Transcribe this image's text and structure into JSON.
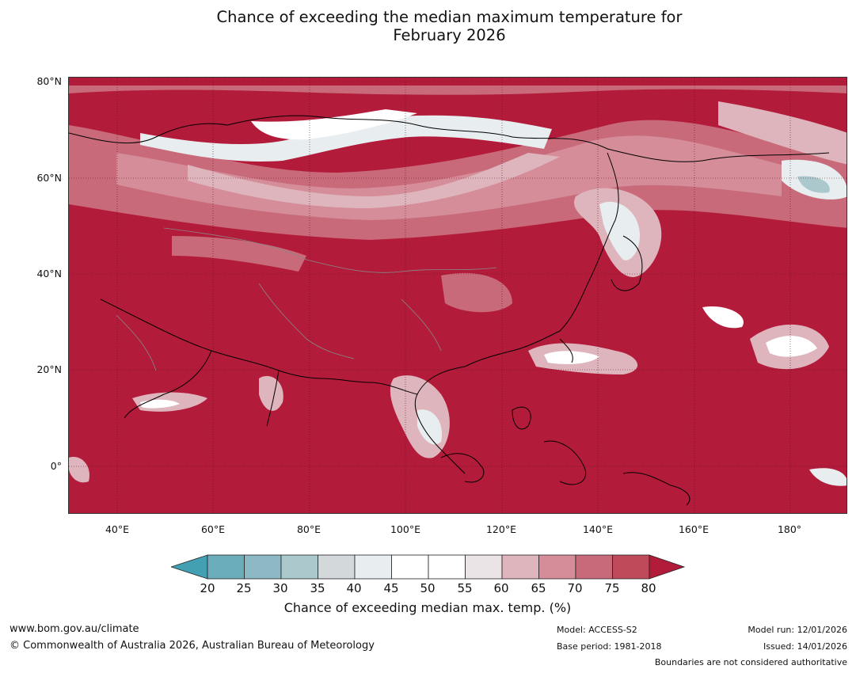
{
  "title_line1": "Chance of exceeding the median maximum temperature for",
  "title_line2": "February 2026",
  "latitude_labels": [
    "80°N",
    "60°N",
    "40°N",
    "20°N",
    "0°"
  ],
  "longitude_labels": [
    "40°E",
    "60°E",
    "80°E",
    "100°E",
    "120°E",
    "140°E",
    "160°E",
    "180°"
  ],
  "map": {
    "lon_range": [
      30,
      192
    ],
    "lat_range": [
      -10,
      81
    ],
    "dominant_category": "80+",
    "background_color": "#b31b3a"
  },
  "colorbar": {
    "ticks": [
      "20",
      "25",
      "30",
      "35",
      "40",
      "45",
      "50",
      "55",
      "60",
      "65",
      "70",
      "75",
      "80"
    ],
    "colors": [
      "#43a0b3",
      "#6badbb",
      "#8cb9c4",
      "#abc8cd",
      "#d3d9db",
      "#e8eef0",
      "#ffffff",
      "#ffffff",
      "#ebe4e6",
      "#dfb5bd",
      "#d48d99",
      "#c86a79",
      "#bf4a5a",
      "#b31b3a"
    ],
    "label": "Chance of exceeding median max. temp. (%)"
  },
  "footer": {
    "website": "www.bom.gov.au/climate",
    "copyright": "© Commonwealth of Australia 2026, Australian Bureau of Meteorology",
    "model": "Model: ACCESS-S2",
    "base_period": "Base period: 1981-2018",
    "model_run": "Model run: 12/01/2026",
    "issued": "Issued: 14/01/2026",
    "disclaimer": "Boundaries are not considered authoritative"
  }
}
